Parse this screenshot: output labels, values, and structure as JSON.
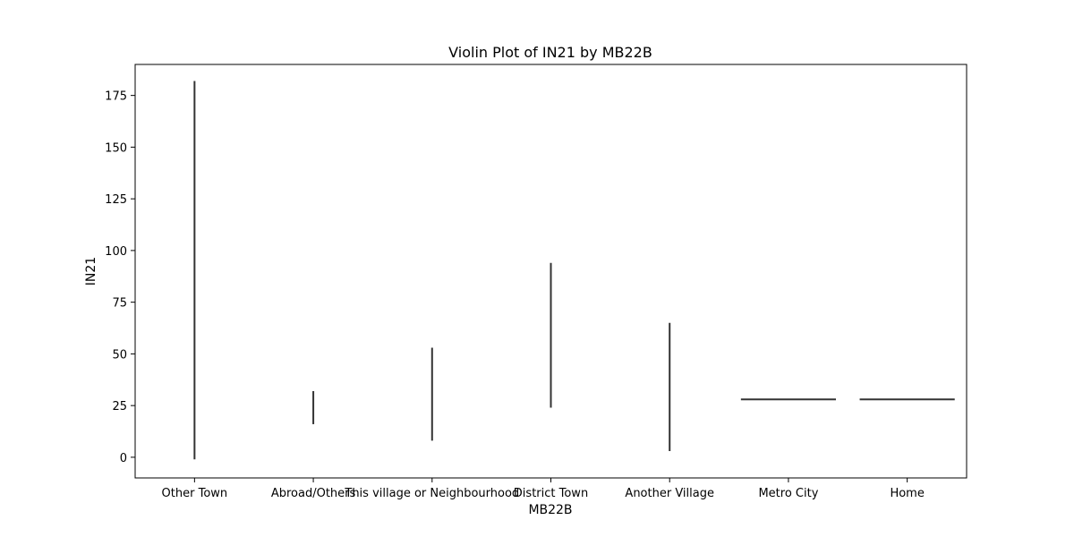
{
  "chart_data": {
    "type": "violin",
    "title": "Violin Plot of IN21 by MB22B",
    "xlabel": "MB22B",
    "ylabel": "IN21",
    "ylim": [
      -10,
      190
    ],
    "yticks": [
      0,
      25,
      50,
      75,
      100,
      125,
      150,
      175
    ],
    "grid": false,
    "categories": [
      "Other Town",
      "Abroad/Others",
      "This village or Neighbourhood",
      "District Town",
      "Another Village",
      "Metro City",
      "Home"
    ],
    "series": [
      {
        "values": [
          {
            "category": "Other Town",
            "min": -1,
            "max": 182
          },
          {
            "category": "Abroad/Others",
            "min": 16,
            "max": 32
          },
          {
            "category": "This village or Neighbourhood",
            "min": 8,
            "max": 53
          },
          {
            "category": "District Town",
            "min": 24,
            "max": 94
          },
          {
            "category": "Another Village",
            "min": 3,
            "max": 65
          },
          {
            "category": "Metro City",
            "min": 28,
            "max": 28
          },
          {
            "category": "Home",
            "min": 28,
            "max": 28
          }
        ]
      }
    ],
    "colors": {
      "mark": "#333333",
      "axis": "#000000"
    }
  }
}
